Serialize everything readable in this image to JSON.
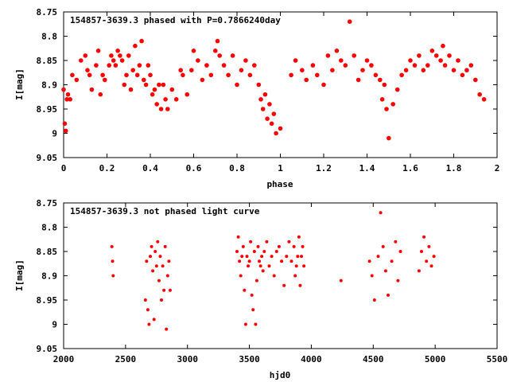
{
  "chart_data": [
    {
      "type": "scatter",
      "title": "154857-3639.3 phased with P=0.7866240day",
      "xlabel": "phase",
      "ylabel": "I[mag]",
      "xlim": [
        0,
        2
      ],
      "ylim": [
        9.05,
        8.75
      ],
      "y_reversed": true,
      "xticks": [
        "0",
        "0.2",
        "0.4",
        "0.6",
        "0.8",
        "1",
        "1.2",
        "1.4",
        "1.6",
        "1.8",
        "2"
      ],
      "yticks": [
        "8.75",
        "8.8",
        "8.85",
        "8.9",
        "8.95",
        "9",
        "9.05"
      ],
      "grid": false,
      "marker_color": "#ff0000",
      "x": [
        0.0,
        0.005,
        0.01,
        0.015,
        0.02,
        0.03,
        0.04,
        0.06,
        0.08,
        0.1,
        0.11,
        0.12,
        0.13,
        0.15,
        0.16,
        0.17,
        0.18,
        0.19,
        0.21,
        0.22,
        0.23,
        0.24,
        0.25,
        0.26,
        0.27,
        0.28,
        0.29,
        0.3,
        0.31,
        0.32,
        0.33,
        0.34,
        0.35,
        0.36,
        0.37,
        0.38,
        0.39,
        0.4,
        0.41,
        0.42,
        0.43,
        0.44,
        0.45,
        0.46,
        0.47,
        0.48,
        0.5,
        0.52,
        0.54,
        0.55,
        0.57,
        0.59,
        0.6,
        0.62,
        0.64,
        0.66,
        0.68,
        0.7,
        0.71,
        0.72,
        0.74,
        0.76,
        0.78,
        0.8,
        0.82,
        0.84,
        0.86,
        0.88,
        0.9,
        0.91,
        0.92,
        0.93,
        0.94,
        0.95,
        0.96,
        0.97,
        0.98,
        1.0,
        1.05,
        1.07,
        1.1,
        1.12,
        1.15,
        1.17,
        1.2,
        1.22,
        1.24,
        1.26,
        1.28,
        1.3,
        1.32,
        1.34,
        1.36,
        1.38,
        1.4,
        1.42,
        1.44,
        1.46,
        1.47,
        1.48,
        1.49,
        1.5,
        1.52,
        1.54,
        1.56,
        1.58,
        1.6,
        1.62,
        1.64,
        1.66,
        1.68,
        1.7,
        1.72,
        1.74,
        1.75,
        1.76,
        1.78,
        1.8,
        1.82,
        1.84,
        1.86,
        1.88,
        1.9,
        1.92,
        1.94
      ],
      "y": [
        8.91,
        8.98,
        8.995,
        8.93,
        8.92,
        8.93,
        8.88,
        8.89,
        8.85,
        8.84,
        8.87,
        8.88,
        8.91,
        8.86,
        8.83,
        8.92,
        8.88,
        8.89,
        8.86,
        8.84,
        8.85,
        8.86,
        8.83,
        8.84,
        8.85,
        8.9,
        8.88,
        8.84,
        8.91,
        8.87,
        8.82,
        8.88,
        8.86,
        8.81,
        8.89,
        8.9,
        8.86,
        8.88,
        8.92,
        8.91,
        8.94,
        8.9,
        8.95,
        8.9,
        8.93,
        8.95,
        8.91,
        8.93,
        8.87,
        8.88,
        8.92,
        8.87,
        8.83,
        8.85,
        8.89,
        8.86,
        8.88,
        8.83,
        8.81,
        8.84,
        8.86,
        8.88,
        8.84,
        8.9,
        8.87,
        8.85,
        8.88,
        8.86,
        8.9,
        8.93,
        8.95,
        8.92,
        8.97,
        8.94,
        8.98,
        8.96,
        9.0,
        8.99,
        8.88,
        8.85,
        8.87,
        8.89,
        8.86,
        8.88,
        8.9,
        8.84,
        8.87,
        8.83,
        8.85,
        8.86,
        8.77,
        8.84,
        8.89,
        8.87,
        8.85,
        8.86,
        8.88,
        8.89,
        8.93,
        8.9,
        8.95,
        9.01,
        8.94,
        8.91,
        8.88,
        8.87,
        8.85,
        8.86,
        8.84,
        8.87,
        8.86,
        8.83,
        8.84,
        8.85,
        8.82,
        8.86,
        8.84,
        8.87,
        8.85,
        8.88,
        8.87,
        8.86,
        8.89,
        8.92,
        8.93
      ]
    },
    {
      "type": "scatter",
      "title": "154857-3639.3 not phased light curve",
      "xlabel": "hjd0",
      "ylabel": "I[mag]",
      "xlim": [
        2000,
        5500
      ],
      "ylim": [
        9.05,
        8.75
      ],
      "y_reversed": true,
      "xticks": [
        "2000",
        "2500",
        "3000",
        "3500",
        "4000",
        "4500",
        "5000",
        "5500"
      ],
      "yticks": [
        "8.75",
        "8.8",
        "8.85",
        "8.9",
        "8.95",
        "9",
        "9.05"
      ],
      "grid": false,
      "marker_color": "#ff0000",
      "x": [
        2390,
        2395,
        2400,
        2660,
        2670,
        2680,
        2690,
        2700,
        2710,
        2720,
        2730,
        2740,
        2750,
        2760,
        2770,
        2780,
        2790,
        2800,
        2810,
        2820,
        2830,
        2840,
        2850,
        2860,
        3400,
        3410,
        3420,
        3430,
        3440,
        3450,
        3460,
        3470,
        3480,
        3490,
        3500,
        3510,
        3520,
        3530,
        3540,
        3550,
        3560,
        3570,
        3580,
        3590,
        3600,
        3610,
        3620,
        3640,
        3660,
        3680,
        3700,
        3720,
        3740,
        3760,
        3780,
        3800,
        3820,
        3840,
        3860,
        3870,
        3880,
        3890,
        3900,
        3910,
        3920,
        3930,
        3940,
        4240,
        4470,
        4490,
        4510,
        4540,
        4560,
        4580,
        4600,
        4620,
        4650,
        4680,
        4700,
        4720,
        4870,
        4890,
        4910,
        4930,
        4950,
        4970,
        4990
      ],
      "y": [
        8.84,
        8.87,
        8.9,
        8.95,
        8.87,
        8.97,
        9.0,
        8.86,
        8.84,
        8.89,
        8.99,
        8.85,
        8.88,
        8.83,
        8.91,
        8.86,
        8.95,
        8.88,
        8.93,
        8.84,
        9.01,
        8.9,
        8.87,
        8.93,
        8.85,
        8.82,
        8.87,
        8.9,
        8.86,
        8.84,
        8.93,
        9.0,
        8.86,
        8.88,
        8.87,
        8.83,
        8.94,
        8.97,
        8.85,
        9.0,
        8.91,
        8.84,
        8.87,
        8.88,
        8.86,
        8.89,
        8.85,
        8.83,
        8.88,
        8.86,
        8.9,
        8.85,
        8.84,
        8.87,
        8.92,
        8.86,
        8.83,
        8.87,
        8.84,
        8.9,
        8.88,
        8.86,
        8.82,
        8.92,
        8.86,
        8.84,
        8.88,
        8.91,
        8.87,
        8.9,
        8.95,
        8.86,
        8.77,
        8.84,
        8.89,
        8.94,
        8.87,
        8.83,
        8.91,
        8.85,
        8.89,
        8.85,
        8.82,
        8.87,
        8.84,
        8.88,
        8.86
      ]
    }
  ]
}
